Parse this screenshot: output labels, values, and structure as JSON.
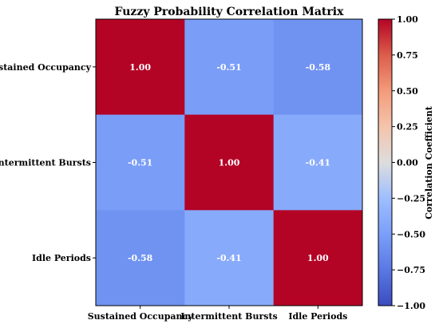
{
  "chart_data": {
    "type": "heatmap",
    "title": "Fuzzy Probability Correlation Matrix",
    "rows": [
      "Sustained Occupancy",
      "Intermittent Bursts",
      "Idle Periods"
    ],
    "columns": [
      "Sustained Occupancy",
      "Intermittent Bursts",
      "Idle Periods"
    ],
    "values": [
      [
        1.0,
        -0.51,
        -0.58
      ],
      [
        -0.51,
        1.0,
        -0.41
      ],
      [
        -0.58,
        -0.41,
        1.0
      ]
    ],
    "cell_labels": [
      [
        "1.00",
        "-0.51",
        "-0.58"
      ],
      [
        "-0.51",
        "1.00",
        "-0.41"
      ],
      [
        "-0.58",
        "-0.41",
        "1.00"
      ]
    ],
    "colormap": "coolwarm",
    "vmin": -1.0,
    "vmax": 1.0,
    "colorbar": {
      "label": "Correlation Coefficient",
      "ticks": [
        1.0,
        0.75,
        0.5,
        0.25,
        0.0,
        -0.25,
        -0.5,
        -0.75,
        -1.0
      ],
      "tick_labels": [
        "1.00",
        "0.75",
        "0.50",
        "0.25",
        "0.00",
        "−0.25",
        "−0.50",
        "−0.75",
        "−1.00"
      ],
      "placement": "right"
    }
  }
}
